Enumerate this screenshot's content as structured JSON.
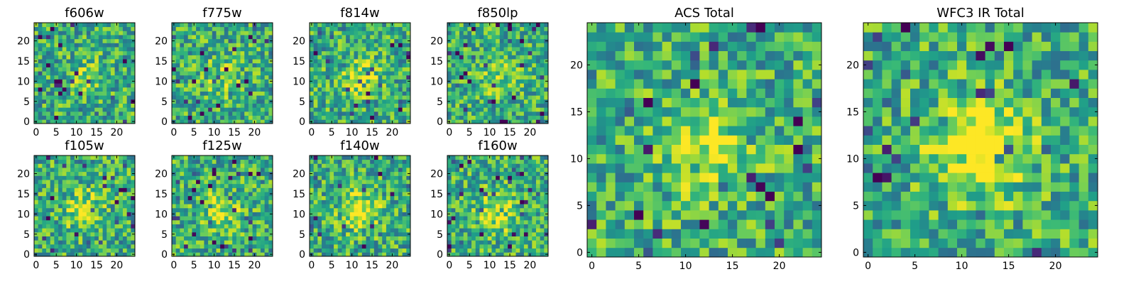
{
  "chart_data": [
    {
      "type": "heatmap",
      "title": "f606w",
      "x_ticks": [
        0,
        5,
        10,
        15,
        20
      ],
      "y_ticks": [
        0,
        5,
        10,
        15,
        20
      ],
      "xlim": [
        0,
        24
      ],
      "ylim": [
        0,
        24
      ],
      "grid_size": 25,
      "colormap": "viridis",
      "seed": 11,
      "center_strength": 0.15
    },
    {
      "type": "heatmap",
      "title": "f775w",
      "x_ticks": [
        0,
        5,
        10,
        15,
        20
      ],
      "y_ticks": [
        0,
        5,
        10,
        15,
        20
      ],
      "xlim": [
        0,
        24
      ],
      "ylim": [
        0,
        24
      ],
      "grid_size": 25,
      "colormap": "viridis",
      "seed": 23,
      "center_strength": 0.2
    },
    {
      "type": "heatmap",
      "title": "f814w",
      "x_ticks": [
        0,
        5,
        10,
        15,
        20
      ],
      "y_ticks": [
        0,
        5,
        10,
        15,
        20
      ],
      "xlim": [
        0,
        24
      ],
      "ylim": [
        0,
        24
      ],
      "grid_size": 25,
      "colormap": "viridis",
      "seed": 37,
      "center_strength": 0.3
    },
    {
      "type": "heatmap",
      "title": "f850lp",
      "x_ticks": [
        0,
        5,
        10,
        15,
        20
      ],
      "y_ticks": [
        0,
        5,
        10,
        15,
        20
      ],
      "xlim": [
        0,
        24
      ],
      "ylim": [
        0,
        24
      ],
      "grid_size": 25,
      "colormap": "viridis",
      "seed": 41,
      "center_strength": 0.2
    },
    {
      "type": "heatmap",
      "title": "f105w",
      "x_ticks": [
        0,
        5,
        10,
        15,
        20
      ],
      "y_ticks": [
        0,
        5,
        10,
        15,
        20
      ],
      "xlim": [
        0,
        24
      ],
      "ylim": [
        0,
        24
      ],
      "grid_size": 25,
      "colormap": "viridis",
      "seed": 53,
      "center_strength": 0.3
    },
    {
      "type": "heatmap",
      "title": "f125w",
      "x_ticks": [
        0,
        5,
        10,
        15,
        20
      ],
      "y_ticks": [
        0,
        5,
        10,
        15,
        20
      ],
      "xlim": [
        0,
        24
      ],
      "ylim": [
        0,
        24
      ],
      "grid_size": 25,
      "colormap": "viridis",
      "seed": 67,
      "center_strength": 0.3
    },
    {
      "type": "heatmap",
      "title": "f140w",
      "x_ticks": [
        0,
        5,
        10,
        15,
        20
      ],
      "y_ticks": [
        0,
        5,
        10,
        15,
        20
      ],
      "xlim": [
        0,
        24
      ],
      "ylim": [
        0,
        24
      ],
      "grid_size": 25,
      "colormap": "viridis",
      "seed": 79,
      "center_strength": 0.35
    },
    {
      "type": "heatmap",
      "title": "f160w",
      "x_ticks": [
        0,
        5,
        10,
        15,
        20
      ],
      "y_ticks": [
        0,
        5,
        10,
        15,
        20
      ],
      "xlim": [
        0,
        24
      ],
      "ylim": [
        0,
        24
      ],
      "grid_size": 25,
      "colormap": "viridis",
      "seed": 83,
      "center_strength": 0.35
    },
    {
      "type": "heatmap",
      "title": "ACS Total",
      "x_ticks": [
        0,
        5,
        10,
        15,
        20
      ],
      "y_ticks": [
        0,
        5,
        10,
        15,
        20
      ],
      "xlim": [
        0,
        24
      ],
      "ylim": [
        0,
        24
      ],
      "grid_size": 25,
      "colormap": "viridis",
      "seed": 97,
      "center_strength": 0.35
    },
    {
      "type": "heatmap",
      "title": "WFC3 IR Total",
      "x_ticks": [
        0,
        5,
        10,
        15,
        20
      ],
      "y_ticks": [
        0,
        5,
        10,
        15,
        20
      ],
      "xlim": [
        0,
        24
      ],
      "ylim": [
        0,
        24
      ],
      "grid_size": 25,
      "colormap": "viridis",
      "seed": 101,
      "center_strength": 0.6
    }
  ]
}
